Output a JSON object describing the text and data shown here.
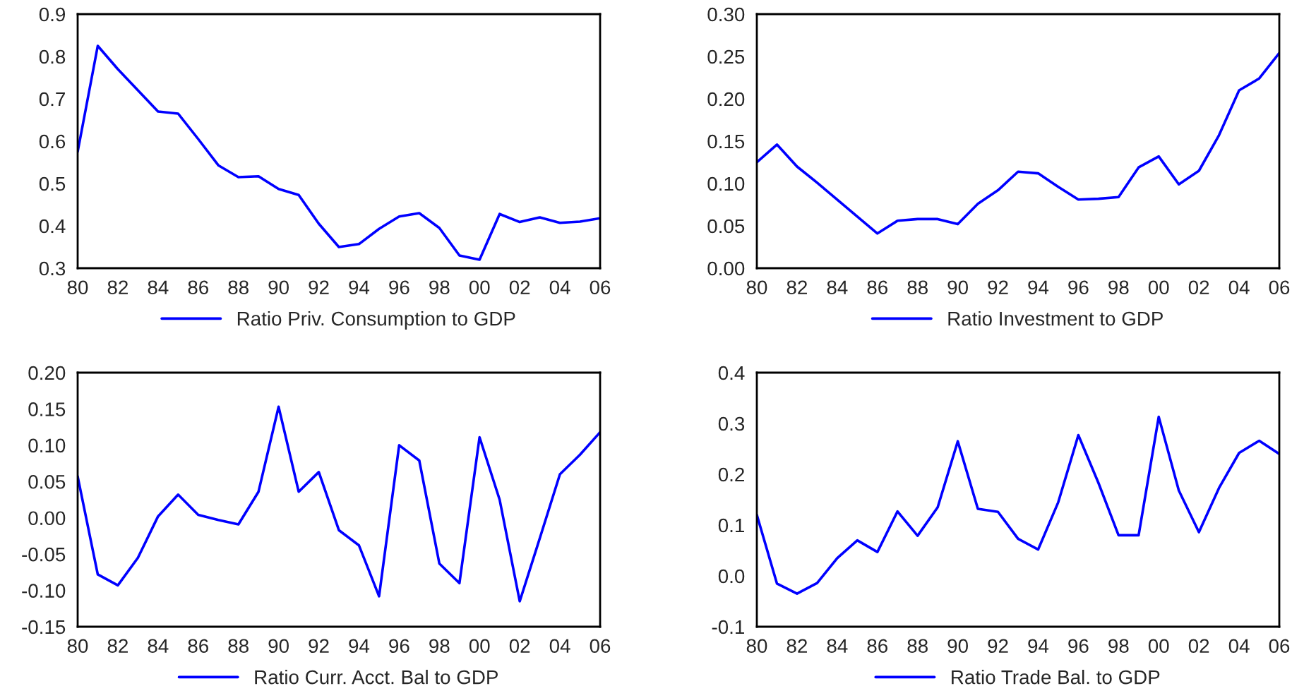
{
  "chart_data": [
    {
      "type": "line",
      "categories": [
        "80",
        null,
        "82",
        null,
        "84",
        null,
        "86",
        null,
        "88",
        null,
        "90",
        null,
        "92",
        null,
        "94",
        null,
        "96",
        null,
        "98",
        null,
        "00",
        null,
        "02",
        null,
        "04",
        null,
        "06"
      ],
      "series": [
        {
          "name": "Ratio Priv. Consumption to GDP",
          "color": "#0000ff",
          "values": [
            0.575,
            0.825,
            0.77,
            0.72,
            0.67,
            0.665,
            0.605,
            0.543,
            0.515,
            0.517,
            0.487,
            0.473,
            0.405,
            0.35,
            0.357,
            0.393,
            0.422,
            0.43,
            0.395,
            0.33,
            0.32,
            0.428,
            0.409,
            0.42,
            0.407,
            0.41,
            0.418
          ]
        }
      ],
      "ylim": [
        0.3,
        0.9
      ],
      "yticks": [
        {
          "value": 0.3,
          "label": "0.3"
        },
        {
          "value": 0.4,
          "label": "0.4"
        },
        {
          "value": 0.5,
          "label": "0.5"
        },
        {
          "value": 0.6,
          "label": "0.6"
        },
        {
          "value": 0.7,
          "label": "0.7"
        },
        {
          "value": 0.8,
          "label": "0.8"
        },
        {
          "value": 0.9,
          "label": "0.9"
        }
      ],
      "grid": false,
      "legend": "bottom"
    },
    {
      "type": "line",
      "categories": [
        "80",
        null,
        "82",
        null,
        "84",
        null,
        "86",
        null,
        "88",
        null,
        "90",
        null,
        "92",
        null,
        "94",
        null,
        "96",
        null,
        "98",
        null,
        "00",
        null,
        "02",
        null,
        "04",
        null,
        "06"
      ],
      "series": [
        {
          "name": "Ratio Investment to GDP",
          "color": "#0000ff",
          "values": [
            0.125,
            0.146,
            0.12,
            0.101,
            0.081,
            0.061,
            0.041,
            0.056,
            0.058,
            0.058,
            0.052,
            0.076,
            0.092,
            0.114,
            0.112,
            0.096,
            0.081,
            0.082,
            0.084,
            0.119,
            0.132,
            0.099,
            0.115,
            0.157,
            0.21,
            0.224,
            0.254
          ]
        }
      ],
      "ylim": [
        0.0,
        0.3
      ],
      "yticks": [
        {
          "value": 0.0,
          "label": "0.00"
        },
        {
          "value": 0.05,
          "label": "0.05"
        },
        {
          "value": 0.1,
          "label": "0.10"
        },
        {
          "value": 0.15,
          "label": "0.15"
        },
        {
          "value": 0.2,
          "label": "0.20"
        },
        {
          "value": 0.25,
          "label": "0.25"
        },
        {
          "value": 0.3,
          "label": "0.30"
        }
      ],
      "grid": false,
      "legend": "bottom"
    },
    {
      "type": "line",
      "categories": [
        "80",
        null,
        "82",
        null,
        "84",
        null,
        "86",
        null,
        "88",
        null,
        "90",
        null,
        "92",
        null,
        "94",
        null,
        "96",
        null,
        "98",
        null,
        "00",
        null,
        "02",
        null,
        "04",
        null,
        "06"
      ],
      "series": [
        {
          "name": "Ratio Curr. Acct. Bal to GDP",
          "color": "#0000ff",
          "values": [
            0.057,
            -0.078,
            -0.093,
            -0.055,
            0.002,
            0.032,
            0.004,
            -0.003,
            -0.009,
            0.036,
            0.153,
            0.036,
            0.063,
            -0.017,
            -0.038,
            -0.108,
            0.1,
            0.079,
            -0.063,
            -0.09,
            0.111,
            0.025,
            -0.115,
            -0.028,
            0.06,
            0.087,
            0.118
          ]
        }
      ],
      "ylim": [
        -0.15,
        0.2
      ],
      "yticks": [
        {
          "value": -0.15,
          "label": "-0.15"
        },
        {
          "value": -0.1,
          "label": "-0.10"
        },
        {
          "value": -0.05,
          "label": "-0.05"
        },
        {
          "value": 0.0,
          "label": "0.00"
        },
        {
          "value": 0.05,
          "label": "0.05"
        },
        {
          "value": 0.1,
          "label": "0.10"
        },
        {
          "value": 0.15,
          "label": "0.15"
        },
        {
          "value": 0.2,
          "label": "0.20"
        }
      ],
      "grid": false,
      "legend": "bottom"
    },
    {
      "type": "line",
      "categories": [
        "80",
        null,
        "82",
        null,
        "84",
        null,
        "86",
        null,
        "88",
        null,
        "90",
        null,
        "92",
        null,
        "94",
        null,
        "96",
        null,
        "98",
        null,
        "00",
        null,
        "02",
        null,
        "04",
        null,
        "06"
      ],
      "series": [
        {
          "name": "Ratio Trade Bal. to GDP",
          "color": "#0000ff",
          "values": [
            0.12,
            -0.015,
            -0.035,
            -0.014,
            0.035,
            0.07,
            0.047,
            0.127,
            0.079,
            0.135,
            0.265,
            0.132,
            0.126,
            0.073,
            0.052,
            0.145,
            0.277,
            0.183,
            0.08,
            0.08,
            0.313,
            0.168,
            0.086,
            0.173,
            0.242,
            0.266,
            0.24
          ]
        }
      ],
      "ylim": [
        -0.1,
        0.4
      ],
      "yticks": [
        {
          "value": -0.1,
          "label": "-0.1"
        },
        {
          "value": 0.0,
          "label": "0.0"
        },
        {
          "value": 0.1,
          "label": "0.1"
        },
        {
          "value": 0.2,
          "label": "0.2"
        },
        {
          "value": 0.3,
          "label": "0.3"
        },
        {
          "value": 0.4,
          "label": "0.4"
        }
      ],
      "grid": false,
      "legend": "bottom"
    }
  ]
}
